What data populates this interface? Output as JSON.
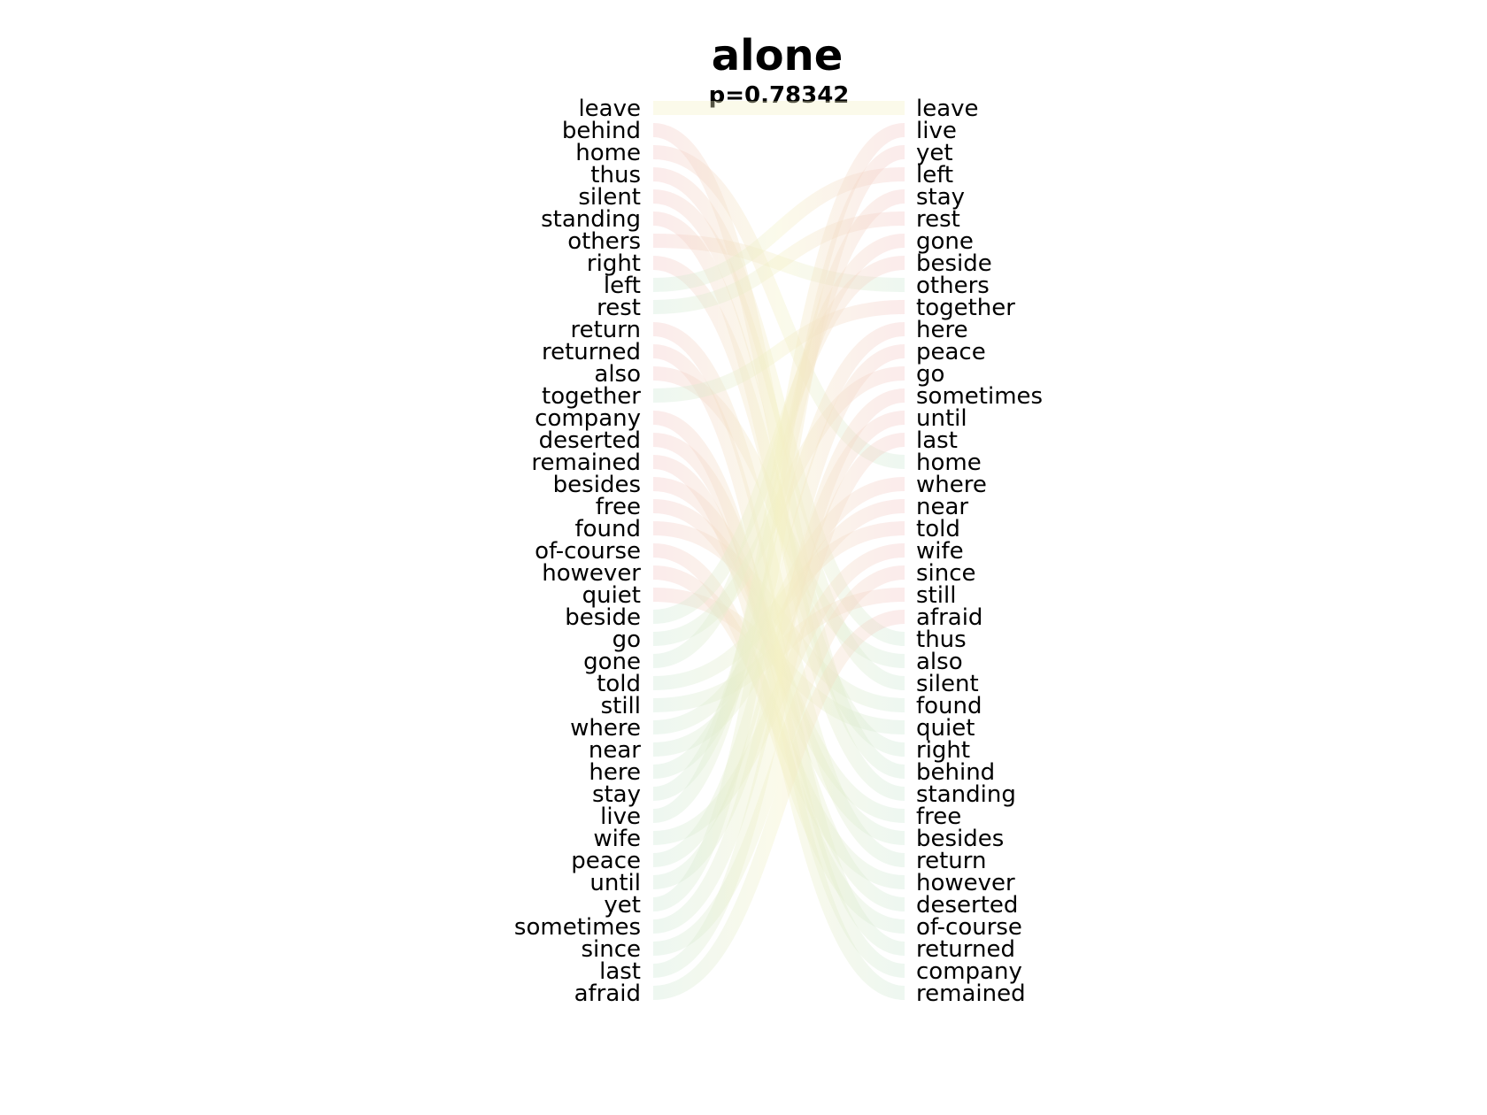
{
  "chart_data": {
    "type": "bump",
    "title": "alone",
    "subtitle": "p=0.78342",
    "left_ranking": [
      "leave",
      "behind",
      "home",
      "thus",
      "silent",
      "standing",
      "others",
      "right",
      "left",
      "rest",
      "return",
      "returned",
      "also",
      "together",
      "company",
      "deserted",
      "remained",
      "besides",
      "free",
      "found",
      "of-course",
      "however",
      "quiet",
      "beside",
      "go",
      "gone",
      "told",
      "still",
      "where",
      "near",
      "here",
      "stay",
      "live",
      "wife",
      "peace",
      "until",
      "yet",
      "sometimes",
      "since",
      "last",
      "afraid"
    ],
    "right_ranking": [
      "leave",
      "live",
      "yet",
      "left",
      "stay",
      "rest",
      "gone",
      "beside",
      "others",
      "together",
      "here",
      "peace",
      "go",
      "sometimes",
      "until",
      "last",
      "home",
      "where",
      "near",
      "told",
      "wife",
      "since",
      "still",
      "afraid",
      "thus",
      "also",
      "silent",
      "found",
      "quiet",
      "right",
      "behind",
      "standing",
      "free",
      "besides",
      "return",
      "however",
      "deserted",
      "of-course",
      "returned",
      "company",
      "remained"
    ],
    "colors": {
      "rank_decrease": "#f4c6c6",
      "rank_increase": "#cde8d6",
      "rank_mid": "#f3f0c4",
      "text": "#000000"
    }
  }
}
